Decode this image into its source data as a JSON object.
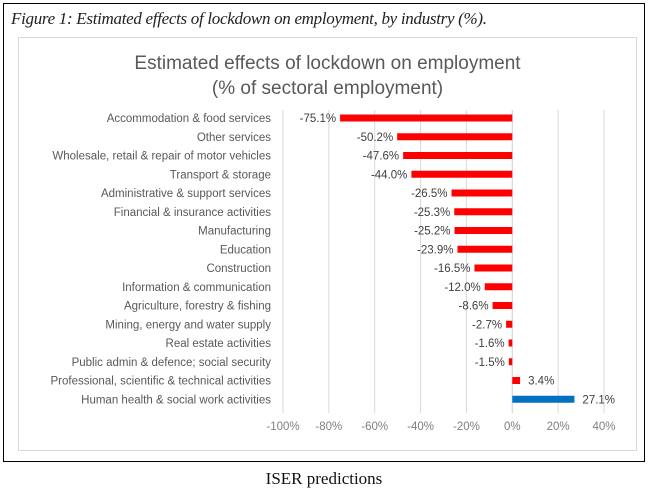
{
  "figure": {
    "caption": "Figure 1: Estimated effects of lockdown on employment, by industry (%).",
    "source_label": "ISER predictions"
  },
  "colors": {
    "negative": "#ff0000",
    "positive_highlight": "#0070c0",
    "gridline": "#d9d9d9",
    "label_text": "#595959"
  },
  "chart_data": {
    "type": "bar",
    "orientation": "horizontal",
    "title": "Estimated effects of lockdown on employment",
    "subtitle": "(% of sectoral employment)",
    "xlabel": "",
    "ylabel": "",
    "xlim": [
      -100,
      40
    ],
    "x_ticks": [
      -100,
      -80,
      -60,
      -40,
      -20,
      0,
      20,
      40
    ],
    "x_tick_labels": [
      "-100%",
      "-80%",
      "-60%",
      "-40%",
      "-20%",
      "0%",
      "20%",
      "40%"
    ],
    "grid": true,
    "legend": "none",
    "categories": [
      "Accommodation & food services",
      "Other services",
      "Wholesale, retail & repair of motor vehicles",
      "Transport & storage",
      "Administrative & support services",
      "Financial & insurance activities",
      "Manufacturing",
      "Education",
      "Construction",
      "Information & communication",
      "Agriculture, forestry & fishing",
      "Mining, energy and water supply",
      "Real estate activities",
      "Public admin & defence; social security",
      "Professional, scientific & technical activities",
      "Human health & social work activities"
    ],
    "values": [
      -75.1,
      -50.2,
      -47.6,
      -44.0,
      -26.5,
      -25.3,
      -25.2,
      -23.9,
      -16.5,
      -12.0,
      -8.6,
      -2.7,
      -1.6,
      -1.5,
      3.4,
      27.1
    ],
    "data_labels": [
      "-75.1%",
      "-50.2%",
      "-47.6%",
      "-44.0%",
      "-26.5%",
      "-25.3%",
      "-25.2%",
      "-23.9%",
      "-16.5%",
      "-12.0%",
      "-8.6%",
      "-2.7%",
      "-1.6%",
      "-1.5%",
      "3.4%",
      "27.1%"
    ],
    "bar_colors": [
      "#ff0000",
      "#ff0000",
      "#ff0000",
      "#ff0000",
      "#ff0000",
      "#ff0000",
      "#ff0000",
      "#ff0000",
      "#ff0000",
      "#ff0000",
      "#ff0000",
      "#ff0000",
      "#ff0000",
      "#ff0000",
      "#ff0000",
      "#0070c0"
    ]
  }
}
